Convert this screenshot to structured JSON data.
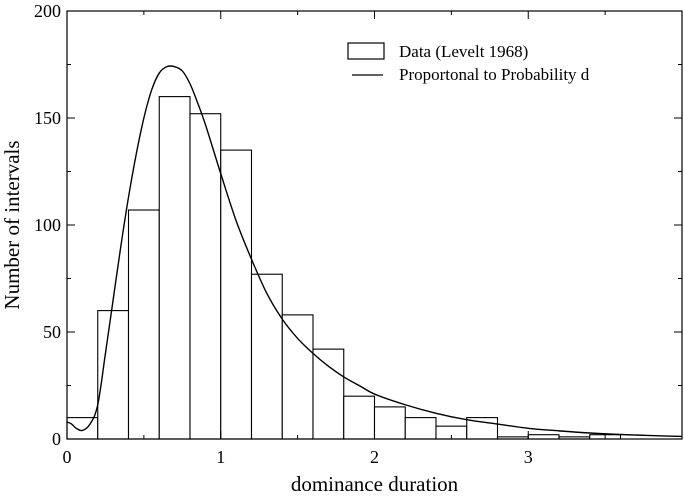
{
  "chart_data": {
    "type": "bar",
    "xlabel": "dominance duration",
    "ylabel": "Number of intervals",
    "xlim": [
      0,
      4.0
    ],
    "ylim": [
      0,
      200
    ],
    "grid": false,
    "legend_position": "top-right",
    "x_ticks": [
      {
        "value": 0,
        "label": "0"
      },
      {
        "value": 1,
        "label": "1"
      },
      {
        "value": 2,
        "label": "2"
      },
      {
        "value": 3,
        "label": "3"
      }
    ],
    "y_ticks": [
      {
        "value": 0,
        "label": "0"
      },
      {
        "value": 50,
        "label": "50"
      },
      {
        "value": 100,
        "label": "100"
      },
      {
        "value": 150,
        "label": "150"
      },
      {
        "value": 200,
        "label": "200"
      }
    ],
    "histogram": {
      "name": "Data (Levelt 1968)",
      "bin_edges": [
        0,
        0.2,
        0.4,
        0.6,
        0.8,
        1.0,
        1.2,
        1.4,
        1.6,
        1.8,
        2.0,
        2.2,
        2.4,
        2.6,
        2.8,
        3.0,
        3.2,
        3.4,
        3.6,
        3.8
      ],
      "counts": [
        10,
        60,
        107,
        160,
        152,
        135,
        77,
        58,
        42,
        20,
        15,
        10,
        6,
        10,
        1,
        2,
        1,
        2,
        0
      ]
    },
    "curve": {
      "name": "Proportonal to Probability d",
      "x": [
        0,
        0.03,
        0.06,
        0.1,
        0.15,
        0.2,
        0.25,
        0.3,
        0.35,
        0.4,
        0.45,
        0.5,
        0.55,
        0.6,
        0.65,
        0.7,
        0.75,
        0.8,
        0.85,
        0.9,
        1.0,
        1.1,
        1.2,
        1.3,
        1.4,
        1.5,
        1.6,
        1.7,
        1.8,
        1.9,
        2.0,
        2.2,
        2.4,
        2.6,
        2.8,
        3.0,
        3.2,
        3.4,
        3.6,
        3.8,
        4.0
      ],
      "y": [
        8,
        7,
        5,
        4,
        7,
        16,
        40,
        65,
        90,
        113,
        133,
        150,
        163,
        171,
        174,
        174,
        172,
        166,
        157,
        147,
        124,
        102,
        84,
        68,
        56,
        47,
        40,
        34,
        29,
        25,
        21,
        16,
        12,
        9,
        7,
        5,
        3.8,
        2.8,
        2.1,
        1.6,
        1.2
      ]
    }
  }
}
